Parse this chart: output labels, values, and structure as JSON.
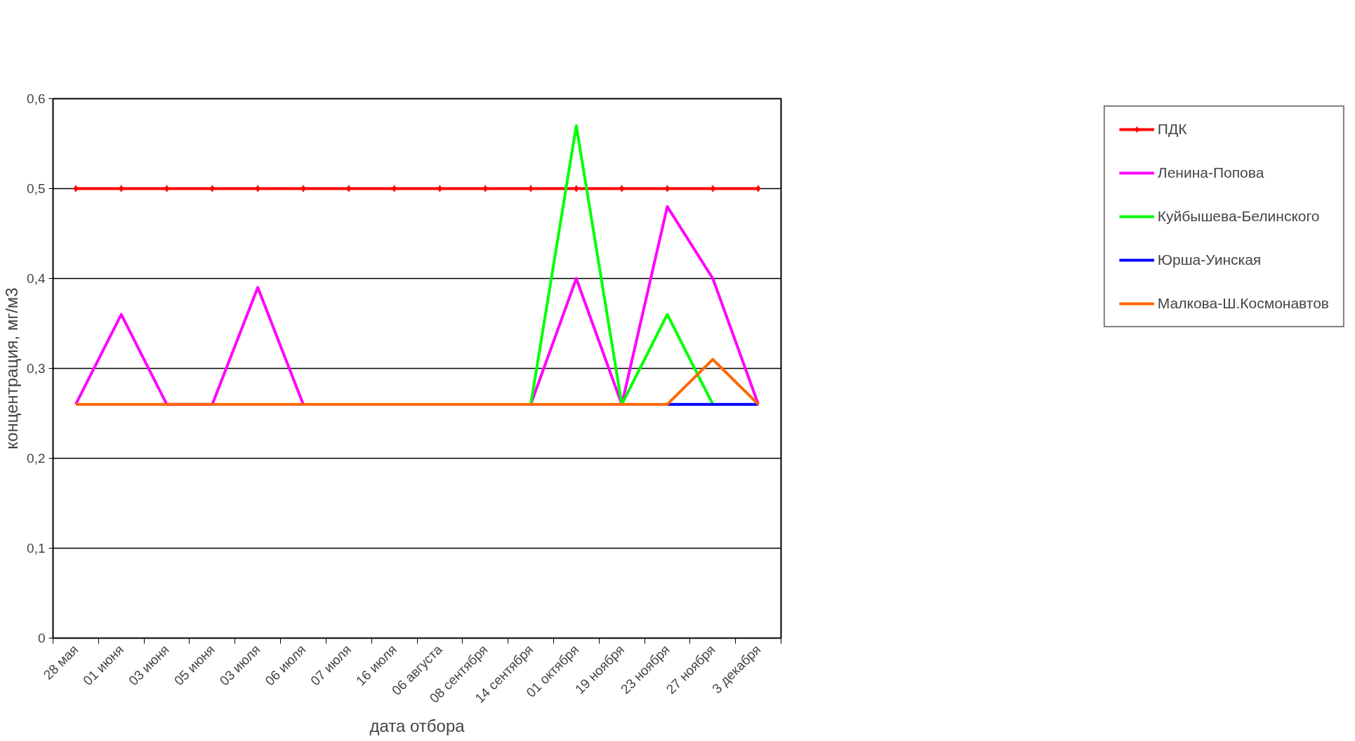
{
  "chart_data": {
    "type": "line",
    "xlabel": "дата отбора",
    "ylabel": "концентрация, мг/м3",
    "categories": [
      "28 мая",
      "01 июня",
      "03 июня",
      "05 июня",
      "03 июля",
      "06 июля",
      "07 июля",
      "16 июля",
      "06 августа",
      "08 сентября",
      "14 сентября",
      "01 октября",
      "19 ноября",
      "23 ноября",
      "27 ноября",
      "3 декабря"
    ],
    "series": [
      {
        "name": "ПДК",
        "color": "#ff0000",
        "marker": "diamond",
        "values": [
          0.5,
          0.5,
          0.5,
          0.5,
          0.5,
          0.5,
          0.5,
          0.5,
          0.5,
          0.5,
          0.5,
          0.5,
          0.5,
          0.5,
          0.5,
          0.5
        ]
      },
      {
        "name": "Ленина-Попова",
        "color": "#ff00ff",
        "values": [
          0.26,
          0.36,
          0.26,
          0.26,
          0.39,
          0.26,
          null,
          null,
          null,
          null,
          0.26,
          0.4,
          0.26,
          0.48,
          0.4,
          0.26
        ]
      },
      {
        "name": "Куйбышева-Белинского",
        "color": "#00ff00",
        "values": [
          null,
          null,
          null,
          null,
          null,
          null,
          null,
          null,
          null,
          null,
          0.26,
          0.57,
          0.26,
          0.36,
          0.26,
          null
        ]
      },
      {
        "name": "Юрша-Уинская",
        "color": "#0000ff",
        "values": [
          null,
          null,
          null,
          null,
          null,
          null,
          null,
          null,
          null,
          null,
          null,
          null,
          null,
          0.26,
          0.26,
          0.26
        ]
      },
      {
        "name": "Малкова-Ш.Космонавтов",
        "color": "#ff6600",
        "values": [
          0.26,
          0.26,
          0.26,
          0.26,
          0.26,
          0.26,
          0.26,
          0.26,
          0.26,
          0.26,
          0.26,
          0.26,
          0.26,
          0.26,
          0.31,
          0.26
        ]
      }
    ],
    "ylim": [
      0,
      0.6
    ],
    "yticks": [
      {
        "value": 0,
        "label": "0"
      },
      {
        "value": 0.1,
        "label": "0,1"
      },
      {
        "value": 0.2,
        "label": "0,2"
      },
      {
        "value": 0.3,
        "label": "0,3"
      },
      {
        "value": 0.4,
        "label": "0,4"
      },
      {
        "value": 0.5,
        "label": "0,5"
      },
      {
        "value": 0.6,
        "label": "0,6"
      }
    ],
    "grid": "y",
    "legend": "right"
  }
}
